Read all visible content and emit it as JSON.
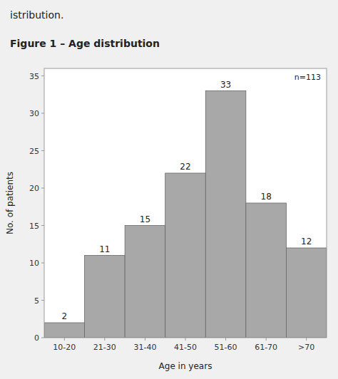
{
  "chart_data": {
    "type": "bar",
    "title": "Figure 1 – Age distribution",
    "annotations": [
      "istribution.",
      "n=113"
    ],
    "xlabel": "Age in years",
    "ylabel": "No. of patients",
    "categories": [
      "10-20",
      "21-30",
      "31-40",
      "41-50",
      "51-60",
      "61-70",
      ">70"
    ],
    "values": [
      2,
      11,
      15,
      22,
      33,
      18,
      12
    ],
    "color": "#a8a8a8",
    "ylim": [
      0,
      36
    ],
    "yticks": [
      0,
      5,
      10,
      15,
      20,
      25,
      30,
      35
    ],
    "grid": false,
    "data_labels": true
  }
}
